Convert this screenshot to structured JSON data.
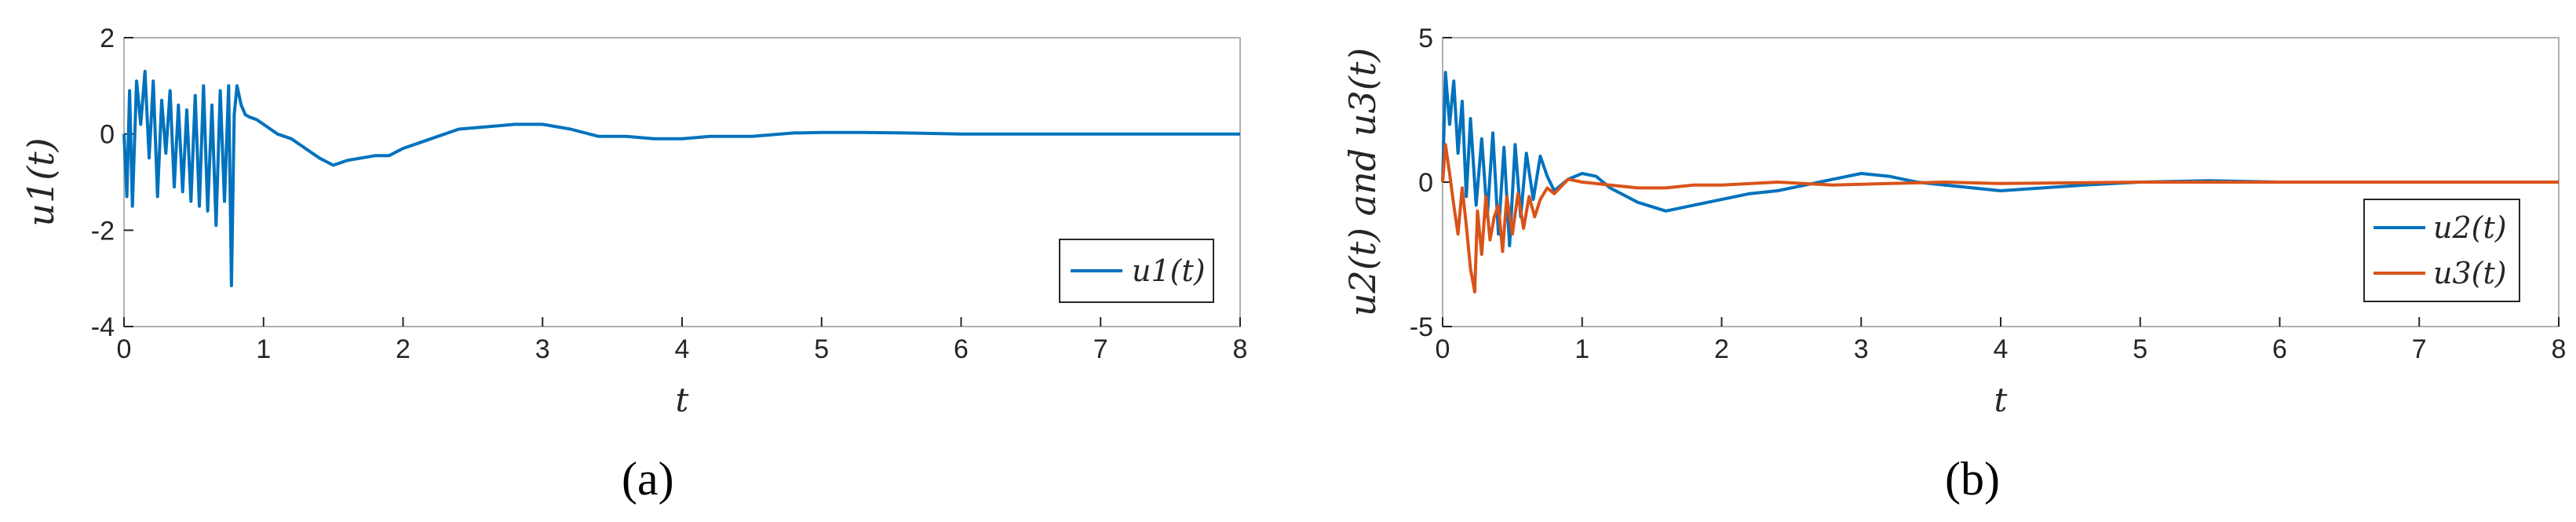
{
  "colors": {
    "series1": "#0072BD",
    "series2": "#D95319",
    "axis": "#262626",
    "frame": "#b0b0b0"
  },
  "chart_data": [
    {
      "type": "line",
      "caption": "(a)",
      "xlabel": "t",
      "ylabel": "u1(t)",
      "xlim": [
        0,
        8
      ],
      "ylim": [
        -4,
        2
      ],
      "xticks": [
        "0",
        "1",
        "2",
        "3",
        "4",
        "5",
        "6",
        "7",
        "8"
      ],
      "yticks": [
        "-4",
        "-2",
        "0",
        "2"
      ],
      "legend": {
        "placement": "lower-right",
        "entries": [
          "u1(t)"
        ]
      },
      "series": [
        {
          "name": "u1(t)",
          "color": "#0072BD",
          "x": [
            0,
            0.02,
            0.04,
            0.06,
            0.09,
            0.12,
            0.15,
            0.18,
            0.21,
            0.24,
            0.27,
            0.3,
            0.33,
            0.36,
            0.39,
            0.42,
            0.45,
            0.48,
            0.51,
            0.54,
            0.57,
            0.6,
            0.63,
            0.66,
            0.69,
            0.72,
            0.75,
            0.77,
            0.79,
            0.81,
            0.84,
            0.87,
            0.9,
            0.95,
            1.0,
            1.1,
            1.2,
            1.3,
            1.4,
            1.5,
            1.6,
            1.7,
            1.8,
            1.9,
            2.0,
            2.2,
            2.4,
            2.6,
            2.8,
            3.0,
            3.2,
            3.4,
            3.6,
            3.8,
            4.0,
            4.2,
            4.5,
            4.8,
            5.0,
            5.3,
            5.6,
            6.0,
            6.5,
            7.0,
            7.5,
            8.0
          ],
          "y": [
            0,
            -1.3,
            0.9,
            -1.5,
            1.1,
            0.2,
            1.3,
            -0.5,
            1.1,
            -1.3,
            0.7,
            -0.4,
            0.9,
            -1.1,
            0.6,
            -1.2,
            0.5,
            -1.4,
            0.8,
            -1.5,
            1.0,
            -1.6,
            0.6,
            -1.9,
            0.9,
            -1.4,
            1.0,
            -3.15,
            0.4,
            1.0,
            0.6,
            0.4,
            0.35,
            0.3,
            0.2,
            0.0,
            -0.1,
            -0.3,
            -0.5,
            -0.65,
            -0.55,
            -0.5,
            -0.45,
            -0.45,
            -0.3,
            -0.1,
            0.1,
            0.15,
            0.2,
            0.2,
            0.1,
            -0.05,
            -0.05,
            -0.1,
            -0.1,
            -0.05,
            -0.05,
            0.02,
            0.03,
            0.03,
            0.02,
            0.0,
            0.0,
            0.0,
            0.0,
            0.0
          ]
        }
      ]
    },
    {
      "type": "line",
      "caption": "(b)",
      "xlabel": "t",
      "ylabel": "u2(t) and u3(t)",
      "xlim": [
        0,
        8
      ],
      "ylim": [
        -5,
        5
      ],
      "xticks": [
        "0",
        "1",
        "2",
        "3",
        "4",
        "5",
        "6",
        "7",
        "8"
      ],
      "yticks": [
        "-5",
        "0",
        "5"
      ],
      "legend": {
        "placement": "lower-right",
        "entries": [
          "u2(t)",
          "u3(t)"
        ]
      },
      "series": [
        {
          "name": "u2(t)",
          "color": "#0072BD",
          "x": [
            0,
            0.02,
            0.05,
            0.08,
            0.11,
            0.14,
            0.17,
            0.2,
            0.24,
            0.28,
            0.32,
            0.36,
            0.4,
            0.44,
            0.48,
            0.52,
            0.56,
            0.6,
            0.65,
            0.7,
            0.75,
            0.8,
            0.9,
            1.0,
            1.1,
            1.2,
            1.4,
            1.6,
            1.8,
            2.0,
            2.2,
            2.4,
            2.6,
            2.8,
            3.0,
            3.2,
            3.4,
            3.6,
            3.8,
            4.0,
            4.3,
            4.6,
            5.0,
            5.5,
            6.0,
            7.0,
            8.0
          ],
          "y": [
            0,
            3.8,
            2.0,
            3.5,
            1.0,
            2.8,
            -0.5,
            2.2,
            -0.8,
            1.5,
            -1.2,
            1.7,
            -1.8,
            1.2,
            -2.2,
            1.3,
            -1.2,
            1.0,
            -0.6,
            0.9,
            0.2,
            -0.3,
            0.1,
            0.3,
            0.2,
            -0.2,
            -0.7,
            -1.0,
            -0.8,
            -0.6,
            -0.4,
            -0.3,
            -0.1,
            0.1,
            0.3,
            0.2,
            0.0,
            -0.1,
            -0.2,
            -0.3,
            -0.2,
            -0.1,
            0.0,
            0.05,
            0.0,
            0.0,
            0.0
          ]
        },
        {
          "name": "u3(t)",
          "color": "#D95319",
          "x": [
            0,
            0.02,
            0.05,
            0.08,
            0.11,
            0.14,
            0.17,
            0.2,
            0.23,
            0.25,
            0.28,
            0.31,
            0.34,
            0.37,
            0.4,
            0.43,
            0.46,
            0.5,
            0.54,
            0.58,
            0.62,
            0.66,
            0.7,
            0.75,
            0.8,
            0.9,
            1.0,
            1.2,
            1.4,
            1.6,
            1.8,
            2.0,
            2.4,
            2.8,
            3.2,
            3.6,
            4.0,
            5.0,
            6.0,
            7.0,
            8.0
          ],
          "y": [
            0,
            1.3,
            0.3,
            -0.8,
            -1.8,
            -0.2,
            -1.5,
            -3.0,
            -3.8,
            -1.0,
            -2.5,
            -0.5,
            -2.0,
            -1.2,
            -0.8,
            -2.4,
            -0.5,
            -1.8,
            -0.4,
            -1.6,
            -0.5,
            -1.2,
            -0.6,
            -0.2,
            -0.4,
            0.1,
            0.0,
            -0.1,
            -0.2,
            -0.2,
            -0.1,
            -0.1,
            0.0,
            -0.1,
            -0.05,
            0.0,
            -0.05,
            0.0,
            0.0,
            0.0,
            0.0
          ]
        }
      ]
    }
  ]
}
